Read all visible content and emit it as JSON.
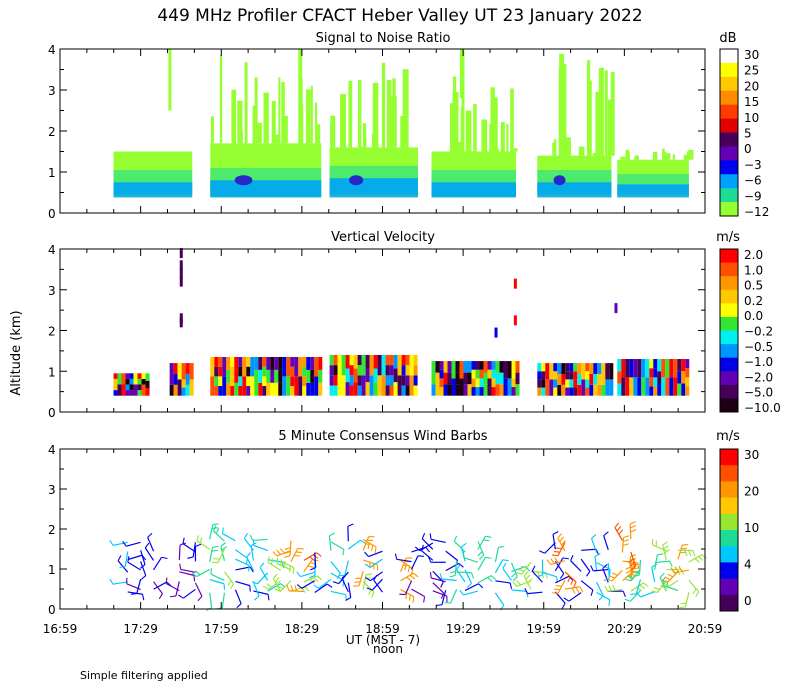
{
  "title": "449 MHz Profiler CFACT Heber Valley UT 23 January 2022",
  "footer_note": "Simple filtering applied",
  "shared_axes": {
    "ylabel": "Altitude (km)",
    "y_ticks": [
      "0",
      "1",
      "2",
      "3",
      "4"
    ],
    "x_ticks": [
      "16:59",
      "17:29",
      "17:59",
      "18:29",
      "18:59",
      "19:29",
      "19:59",
      "20:29",
      "20:59"
    ],
    "xlabel": "UT  (MST - 7)",
    "noon_label": "noon"
  },
  "chart_data": [
    {
      "type": "heatmap",
      "title": "Signal to Noise Ratio",
      "unit": "dB",
      "ylim": [
        0,
        4
      ],
      "xrange": [
        "16:59",
        "20:59"
      ],
      "colorbar_labels": [
        "30",
        "25",
        "20",
        "15",
        "10",
        "5",
        "0",
        "−3",
        "−6",
        "−9",
        "−12"
      ],
      "colorbar_colors": [
        "#ffffff",
        "#ffff00",
        "#ffc800",
        "#ff8c00",
        "#ff3c00",
        "#e10000",
        "#46005a",
        "#6400b4",
        "#0000f0",
        "#00a0ff",
        "#1edc96",
        "#96ff32"
      ],
      "gates": [
        {
          "t0": 0.083,
          "t1": 0.205,
          "alt_top": 1.5,
          "levels": [
            0.45,
            0.75,
            1.05,
            1.5
          ]
        },
        {
          "t0": 0.233,
          "t1": 0.405,
          "alt_top": 4.0,
          "levels": [
            0.4,
            0.8,
            1.1,
            1.7
          ]
        },
        {
          "t0": 0.418,
          "t1": 0.555,
          "alt_top": 4.0,
          "levels": [
            0.45,
            0.85,
            1.15,
            1.6
          ]
        },
        {
          "t0": 0.576,
          "t1": 0.707,
          "alt_top": 4.0,
          "levels": [
            0.4,
            0.75,
            1.05,
            1.5
          ]
        },
        {
          "t0": 0.74,
          "t1": 0.855,
          "alt_top": 4.0,
          "levels": [
            0.45,
            0.75,
            1.05,
            1.4
          ]
        },
        {
          "t0": 0.864,
          "t1": 0.975,
          "alt_top": 1.6,
          "levels": [
            0.45,
            0.7,
            0.95,
            1.3
          ]
        }
      ]
    },
    {
      "type": "heatmap",
      "title": "Vertical Velocity",
      "unit": "m/s",
      "ylim": [
        0,
        4
      ],
      "xrange": [
        "16:59",
        "20:59"
      ],
      "colorbar_labels": [
        "2.0",
        "1.0",
        "0.5",
        "0.2",
        "0.0",
        "−0.2",
        "−0.5",
        "−1.0",
        "−2.0",
        "−5.0",
        "−10.0"
      ],
      "colorbar_colors": [
        "#ff0000",
        "#ff5000",
        "#ff9600",
        "#ffc800",
        "#ffff00",
        "#32e632",
        "#00f0f0",
        "#0096ff",
        "#0000e6",
        "#6400b4",
        "#46005a",
        "#1e0014"
      ],
      "blocks": [
        {
          "t0": 0.083,
          "t1": 0.135,
          "alt_top": 0.95
        },
        {
          "t0": 0.17,
          "t1": 0.206,
          "alt_top": 1.2
        },
        {
          "t0": 0.233,
          "t1": 0.405,
          "alt_top": 1.35
        },
        {
          "t0": 0.418,
          "t1": 0.55,
          "alt_top": 1.4
        },
        {
          "t0": 0.576,
          "t1": 0.707,
          "alt_top": 1.25
        },
        {
          "t0": 0.74,
          "t1": 0.855,
          "alt_top": 1.2
        },
        {
          "t0": 0.864,
          "t1": 0.975,
          "alt_top": 1.3
        }
      ],
      "isolated_points": [
        {
          "t": 0.188,
          "alt": 3.9,
          "v": -10.0
        },
        {
          "t": 0.188,
          "alt": 3.6,
          "v": -10.0
        },
        {
          "t": 0.188,
          "alt": 3.4,
          "v": -10.0
        },
        {
          "t": 0.188,
          "alt": 3.2,
          "v": -10.0
        },
        {
          "t": 0.188,
          "alt": 2.3,
          "v": -10.0
        },
        {
          "t": 0.188,
          "alt": 2.2,
          "v": -10.0
        },
        {
          "t": 0.706,
          "alt": 3.15,
          "v": 2.0
        },
        {
          "t": 0.706,
          "alt": 2.25,
          "v": 2.0
        },
        {
          "t": 0.676,
          "alt": 1.95,
          "v": -2.0
        },
        {
          "t": 0.862,
          "alt": 2.55,
          "v": -5.0
        }
      ]
    },
    {
      "type": "wind_barbs",
      "title": "5 Minute Consensus Wind Barbs",
      "unit": "m/s",
      "ylim": [
        0,
        4
      ],
      "xrange": [
        "16:59",
        "20:59"
      ],
      "colorbar_labels": [
        "30",
        "20",
        "10",
        "4",
        "0"
      ],
      "colorbar_colors": [
        "#ff0000",
        "#ff5000",
        "#ff9600",
        "#ffc800",
        "#96e632",
        "#1edc96",
        "#00c8ff",
        "#0000f0",
        "#6400b4",
        "#46005a"
      ],
      "columns": [
        {
          "t": 0.105,
          "speed": 3
        },
        {
          "t": 0.125,
          "speed": 2
        },
        {
          "t": 0.145,
          "speed": 2
        },
        {
          "t": 0.185,
          "speed": 1
        },
        {
          "t": 0.21,
          "speed": 2
        },
        {
          "t": 0.232,
          "speed": 6
        },
        {
          "t": 0.255,
          "speed": 7
        },
        {
          "t": 0.272,
          "speed": 3
        },
        {
          "t": 0.3,
          "speed": 4
        },
        {
          "t": 0.322,
          "speed": 4
        },
        {
          "t": 0.342,
          "speed": 9
        },
        {
          "t": 0.358,
          "speed": 11
        },
        {
          "t": 0.378,
          "speed": 15
        },
        {
          "t": 0.395,
          "speed": 3
        },
        {
          "t": 0.42,
          "speed": 4
        },
        {
          "t": 0.447,
          "speed": 3
        },
        {
          "t": 0.47,
          "speed": 11
        },
        {
          "t": 0.5,
          "speed": 3
        },
        {
          "t": 0.528,
          "speed": 12
        },
        {
          "t": 0.545,
          "speed": 2
        },
        {
          "t": 0.578,
          "speed": 2
        },
        {
          "t": 0.598,
          "speed": 2
        },
        {
          "t": 0.615,
          "speed": 5
        },
        {
          "t": 0.628,
          "speed": 4
        },
        {
          "t": 0.648,
          "speed": 6
        },
        {
          "t": 0.675,
          "speed": 4
        },
        {
          "t": 0.7,
          "speed": 6
        },
        {
          "t": 0.73,
          "speed": 10
        },
        {
          "t": 0.748,
          "speed": 3
        },
        {
          "t": 0.768,
          "speed": 2
        },
        {
          "t": 0.783,
          "speed": 14
        },
        {
          "t": 0.808,
          "speed": 2
        },
        {
          "t": 0.832,
          "speed": 4
        },
        {
          "t": 0.85,
          "speed": 3
        },
        {
          "t": 0.872,
          "speed": 13
        },
        {
          "t": 0.885,
          "speed": 13
        },
        {
          "t": 0.9,
          "speed": 6
        },
        {
          "t": 0.922,
          "speed": 5
        },
        {
          "t": 0.94,
          "speed": 9
        },
        {
          "t": 0.958,
          "speed": 10
        },
        {
          "t": 0.975,
          "speed": 11
        }
      ]
    }
  ]
}
